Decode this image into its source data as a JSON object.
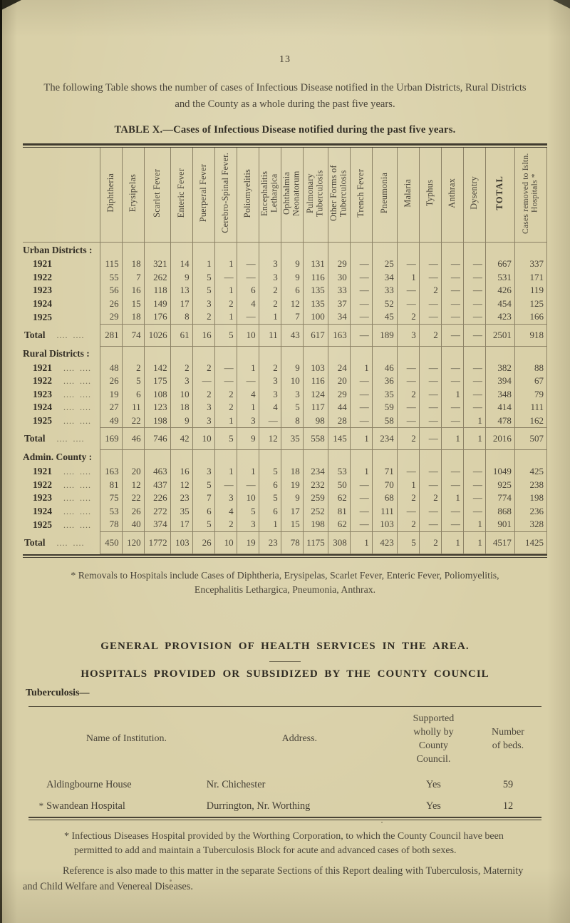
{
  "page": {
    "number": "13",
    "intro": "The following Table shows the number of cases of Infectious Disease notified in the Urban Districts, Rural Districts and the County as a whole during the past five years.",
    "table_caption_label": "TABLE X.",
    "table_caption_text": "—Cases of Infectious Disease notified during the past five years."
  },
  "disease_table": {
    "columns": [
      "Diphtheria",
      "Erysipelas",
      "Scarlet Fever",
      "Enteric Fever",
      "Puerperal Fever",
      "Cerebro-Spinal Fever.",
      "Poliomyelitis",
      "Encephalitis Lethargica",
      "Ophthalmia Neonatorum",
      "Pulmonary Tuberculosis",
      "Other Forms of Tuberculosis",
      "Trench Fever",
      "Pneumonia",
      "Malaria",
      "Typhus",
      "Anthrax",
      "Dysentry",
      "TOTAL",
      "Cases removed to Isltn. Hospitals *"
    ],
    "total_label": "Total",
    "dots": ".... ....",
    "sections": [
      {
        "heading": "Urban Districts :",
        "year_dots": false,
        "rows": [
          {
            "label": "1921",
            "values": [
              "115",
              "18",
              "321",
              "14",
              "1",
              "1",
              "—",
              "3",
              "9",
              "131",
              "29",
              "—",
              "25",
              "—",
              "—",
              "—",
              "—",
              "667",
              "337"
            ]
          },
          {
            "label": "1922",
            "values": [
              "55",
              "7",
              "262",
              "9",
              "5",
              "—",
              "—",
              "3",
              "9",
              "116",
              "30",
              "—",
              "34",
              "1",
              "—",
              "—",
              "—",
              "531",
              "171"
            ]
          },
          {
            "label": "1923",
            "values": [
              "56",
              "16",
              "118",
              "13",
              "5",
              "1",
              "6",
              "2",
              "6",
              "135",
              "33",
              "—",
              "33",
              "—",
              "2",
              "—",
              "—",
              "426",
              "119"
            ]
          },
          {
            "label": "1924",
            "values": [
              "26",
              "15",
              "149",
              "17",
              "3",
              "2",
              "4",
              "2",
              "12",
              "135",
              "37",
              "—",
              "52",
              "—",
              "—",
              "—",
              "—",
              "454",
              "125"
            ]
          },
          {
            "label": "1925",
            "values": [
              "29",
              "18",
              "176",
              "8",
              "2",
              "1",
              "—",
              "1",
              "7",
              "100",
              "34",
              "—",
              "45",
              "2",
              "—",
              "—",
              "—",
              "423",
              "166"
            ]
          }
        ],
        "total": [
          "281",
          "74",
          "1026",
          "61",
          "16",
          "5",
          "10",
          "11",
          "43",
          "617",
          "163",
          "—",
          "189",
          "3",
          "2",
          "—",
          "—",
          "2501",
          "918"
        ]
      },
      {
        "heading": "Rural Districts :",
        "year_dots": true,
        "rows": [
          {
            "label": "1921",
            "values": [
              "48",
              "2",
              "142",
              "2",
              "2",
              "—",
              "1",
              "2",
              "9",
              "103",
              "24",
              "1",
              "46",
              "—",
              "—",
              "—",
              "—",
              "382",
              "88"
            ]
          },
          {
            "label": "1922",
            "values": [
              "26",
              "5",
              "175",
              "3",
              "—",
              "—",
              "—",
              "3",
              "10",
              "116",
              "20",
              "—",
              "36",
              "—",
              "—",
              "—",
              "—",
              "394",
              "67"
            ]
          },
          {
            "label": "1923",
            "values": [
              "19",
              "6",
              "108",
              "10",
              "2",
              "2",
              "4",
              "3",
              "3",
              "124",
              "29",
              "—",
              "35",
              "2",
              "—",
              "1",
              "—",
              "348",
              "79"
            ]
          },
          {
            "label": "1924",
            "values": [
              "27",
              "11",
              "123",
              "18",
              "3",
              "2",
              "1",
              "4",
              "5",
              "117",
              "44",
              "—",
              "59",
              "—",
              "—",
              "—",
              "—",
              "414",
              "111"
            ]
          },
          {
            "label": "1925",
            "values": [
              "49",
              "22",
              "198",
              "9",
              "3",
              "1",
              "3",
              "—",
              "8",
              "98",
              "28",
              "—",
              "58",
              "—",
              "—",
              "—",
              "1",
              "478",
              "162"
            ]
          }
        ],
        "total": [
          "169",
          "46",
          "746",
          "42",
          "10",
          "5",
          "9",
          "12",
          "35",
          "558",
          "145",
          "1",
          "234",
          "2",
          "—",
          "1",
          "1",
          "2016",
          "507"
        ]
      },
      {
        "heading": "Admin. County :",
        "year_dots": true,
        "rows": [
          {
            "label": "1921",
            "values": [
              "163",
              "20",
              "463",
              "16",
              "3",
              "1",
              "1",
              "5",
              "18",
              "234",
              "53",
              "1",
              "71",
              "—",
              "—",
              "—",
              "—",
              "1049",
              "425"
            ]
          },
          {
            "label": "1922",
            "values": [
              "81",
              "12",
              "437",
              "12",
              "5",
              "—",
              "—",
              "6",
              "19",
              "232",
              "50",
              "—",
              "70",
              "1",
              "—",
              "—",
              "—",
              "925",
              "238"
            ]
          },
          {
            "label": "1923",
            "values": [
              "75",
              "22",
              "226",
              "23",
              "7",
              "3",
              "10",
              "5",
              "9",
              "259",
              "62",
              "—",
              "68",
              "2",
              "2",
              "1",
              "—",
              "774",
              "198"
            ]
          },
          {
            "label": "1924",
            "values": [
              "53",
              "26",
              "272",
              "35",
              "6",
              "4",
              "5",
              "6",
              "17",
              "252",
              "81",
              "—",
              "111",
              "—",
              "—",
              "—",
              "—",
              "868",
              "236"
            ]
          },
          {
            "label": "1925",
            "values": [
              "78",
              "40",
              "374",
              "17",
              "5",
              "2",
              "3",
              "1",
              "15",
              "198",
              "62",
              "—",
              "103",
              "2",
              "—",
              "—",
              "1",
              "901",
              "328"
            ]
          }
        ],
        "total": [
          "450",
          "120",
          "1772",
          "103",
          "26",
          "10",
          "19",
          "23",
          "78",
          "1175",
          "308",
          "1",
          "423",
          "5",
          "2",
          "1",
          "1",
          "4517",
          "1425"
        ]
      }
    ],
    "footnote": "* Removals to Hospitals include Cases of Diphtheria, Erysipelas, Scarlet Fever, Enteric Fever, Poliomyelitis, Encephalitis Lethargica, Pneumonia, Anthrax."
  },
  "services": {
    "heading": "GENERAL PROVISION OF HEALTH SERVICES IN THE AREA.",
    "subheading": "HOSPITALS PROVIDED OR SUBSIDIZED BY THE COUNTY COUNCIL",
    "category": "Tuberculosis—",
    "hospital_table": {
      "headers": [
        "Name of Institution.",
        "Address.",
        "Supported wholly by County Council.",
        "Number of beds."
      ],
      "rows": [
        {
          "marker": "",
          "name": "Aldingbourne House",
          "address": "Nr. Chichester",
          "supported": "Yes",
          "beds": "59"
        },
        {
          "marker": "*",
          "name": "Swandean Hospital",
          "address": "Durrington, Nr. Worthing",
          "supported": "Yes",
          "beds": "12"
        }
      ]
    },
    "footnote": "* Infectious Diseases Hospital provided by the Worthing Corporation, to which the County Council have been permitted to add and maintain a Tuberculosis Block for acute and advanced cases of both sexes.",
    "closing": "Reference is also made to this matter in the separate Sections of this Report dealing with Tuberculosis, Maternity and Child Welfare and Venereal Diseases."
  }
}
